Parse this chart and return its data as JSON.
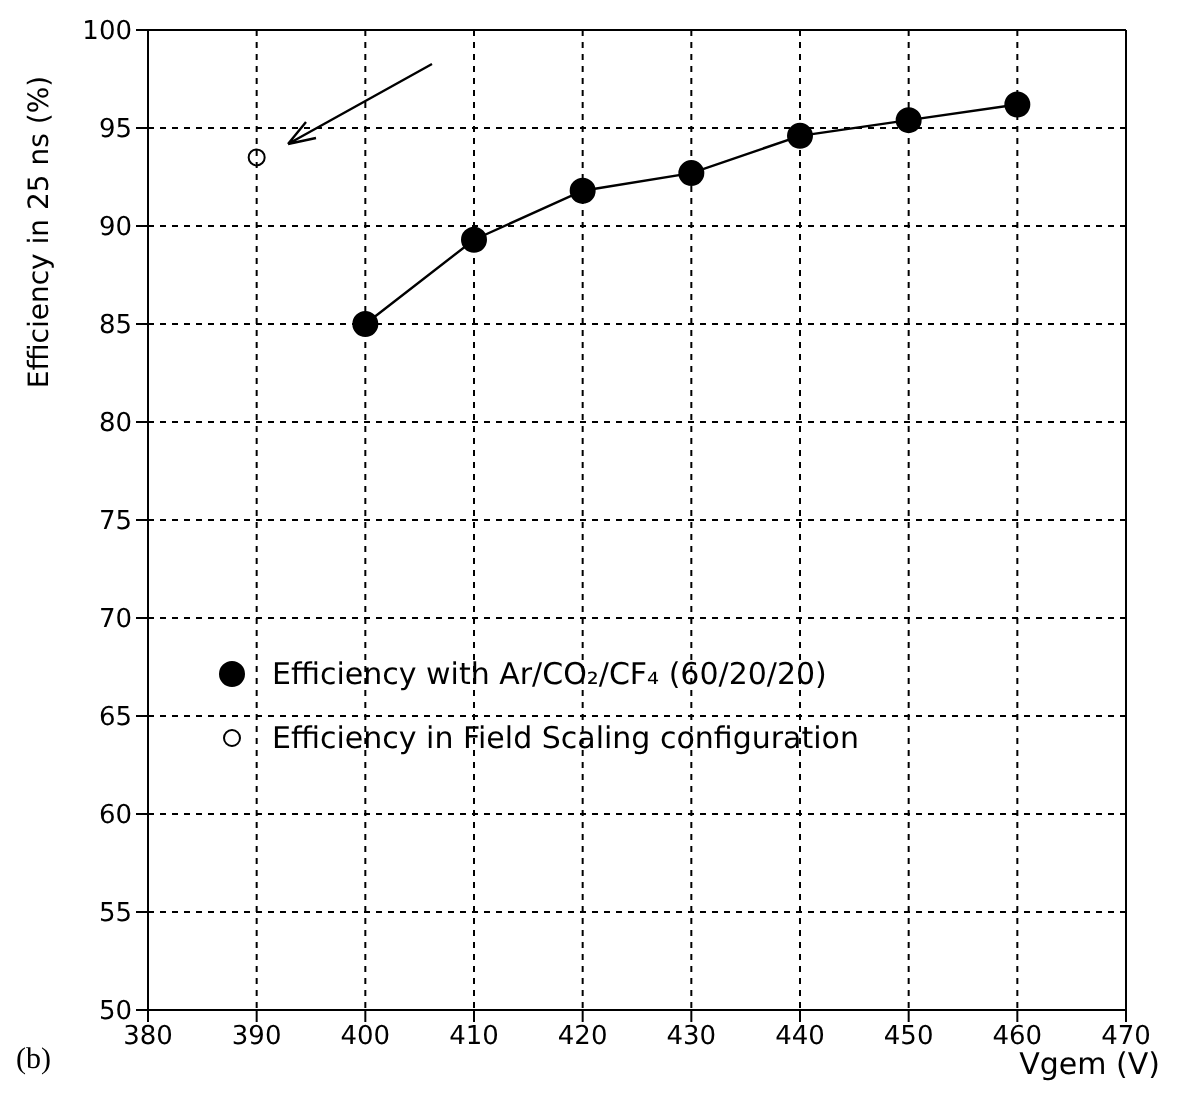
{
  "chart_data": {
    "type": "line",
    "xlabel": "Vgem (V)",
    "ylabel": "Efficiency in 25 ns (%)",
    "series": [
      {
        "name": "Efficiency with Ar/CO₂/CF₄ (60/20/20)",
        "color": "#000000",
        "x": [
          400,
          410,
          420,
          430,
          440,
          450,
          460
        ],
        "values": [
          85.0,
          89.3,
          91.8,
          92.7,
          94.6,
          95.4,
          96.2
        ]
      },
      {
        "name": "Efficiency in Field Scaling configuration",
        "type": "scatter",
        "color": "#000000",
        "x": [
          390
        ],
        "values": [
          93.5
        ]
      }
    ],
    "xlim": [
      380,
      470
    ],
    "xticks": [
      380,
      390,
      400,
      410,
      420,
      430,
      440,
      450,
      460,
      470
    ],
    "ylim": [
      50,
      100
    ],
    "yticks": [
      50,
      55,
      60,
      65,
      70,
      75,
      80,
      85,
      90,
      95,
      100
    ],
    "grid": true,
    "marker": "circle",
    "legend": "left",
    "annotations": [
      "(b)"
    ]
  }
}
